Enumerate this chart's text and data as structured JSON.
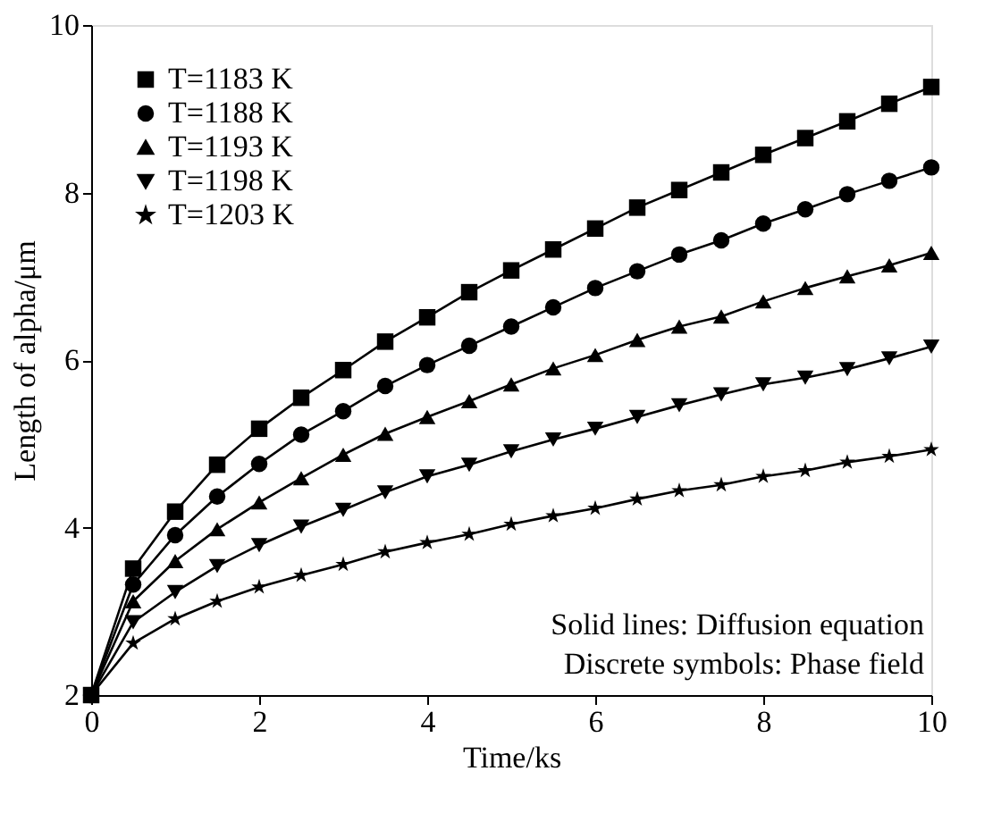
{
  "chart_data": {
    "type": "line",
    "xlabel": "Time/ks",
    "ylabel": "Length of alpha/μm",
    "x": [
      0,
      0.5,
      1,
      1.5,
      2,
      2.5,
      3,
      3.5,
      4,
      4.5,
      5,
      5.5,
      6,
      6.5,
      7,
      7.5,
      8,
      8.5,
      9,
      9.5,
      10
    ],
    "series": [
      {
        "name": "T=1183 K",
        "color": "#000000",
        "marker": "square",
        "values": [
          2,
          3.51,
          4.19,
          4.75,
          5.18,
          5.55,
          5.88,
          6.22,
          6.51,
          6.81,
          7.07,
          7.32,
          7.57,
          7.82,
          8.03,
          8.24,
          8.45,
          8.65,
          8.85,
          9.06,
          9.26
        ]
      },
      {
        "name": "T=1188 K",
        "color": "#000000",
        "marker": "circle",
        "values": [
          2,
          3.32,
          3.91,
          4.37,
          4.76,
          5.11,
          5.39,
          5.69,
          5.94,
          6.17,
          6.4,
          6.63,
          6.86,
          7.06,
          7.26,
          7.43,
          7.63,
          7.8,
          7.98,
          8.14,
          8.3
        ]
      },
      {
        "name": "T=1193 K",
        "color": "#000000",
        "marker": "triangle",
        "values": [
          2,
          3.12,
          3.6,
          3.98,
          4.3,
          4.59,
          4.87,
          5.12,
          5.32,
          5.51,
          5.71,
          5.9,
          6.06,
          6.24,
          6.4,
          6.52,
          6.7,
          6.86,
          7.0,
          7.13,
          7.28
        ]
      },
      {
        "name": "T=1198 K",
        "color": "#000000",
        "marker": "triangle-down",
        "values": [
          2,
          2.87,
          3.23,
          3.54,
          3.79,
          4.01,
          4.21,
          4.42,
          4.61,
          4.75,
          4.91,
          5.05,
          5.18,
          5.32,
          5.46,
          5.59,
          5.71,
          5.79,
          5.89,
          6.02,
          6.16
        ]
      },
      {
        "name": "T=1203 K",
        "color": "#000000",
        "marker": "star",
        "values": [
          2,
          2.62,
          2.91,
          3.12,
          3.29,
          3.43,
          3.56,
          3.71,
          3.82,
          3.92,
          4.04,
          4.14,
          4.23,
          4.34,
          4.44,
          4.51,
          4.61,
          4.68,
          4.78,
          4.85,
          4.93
        ]
      }
    ],
    "xlim": [
      0,
      10
    ],
    "xticks": [
      0,
      2,
      4,
      6,
      8,
      10
    ],
    "ylim": [
      2,
      10
    ],
    "yticks": [
      2,
      4,
      6,
      8,
      10
    ],
    "grid": false,
    "legend": "top left",
    "line_style": "solid",
    "annotations": [
      "Solid lines: Diffusion equation",
      "Discrete symbols: Phase field"
    ]
  }
}
